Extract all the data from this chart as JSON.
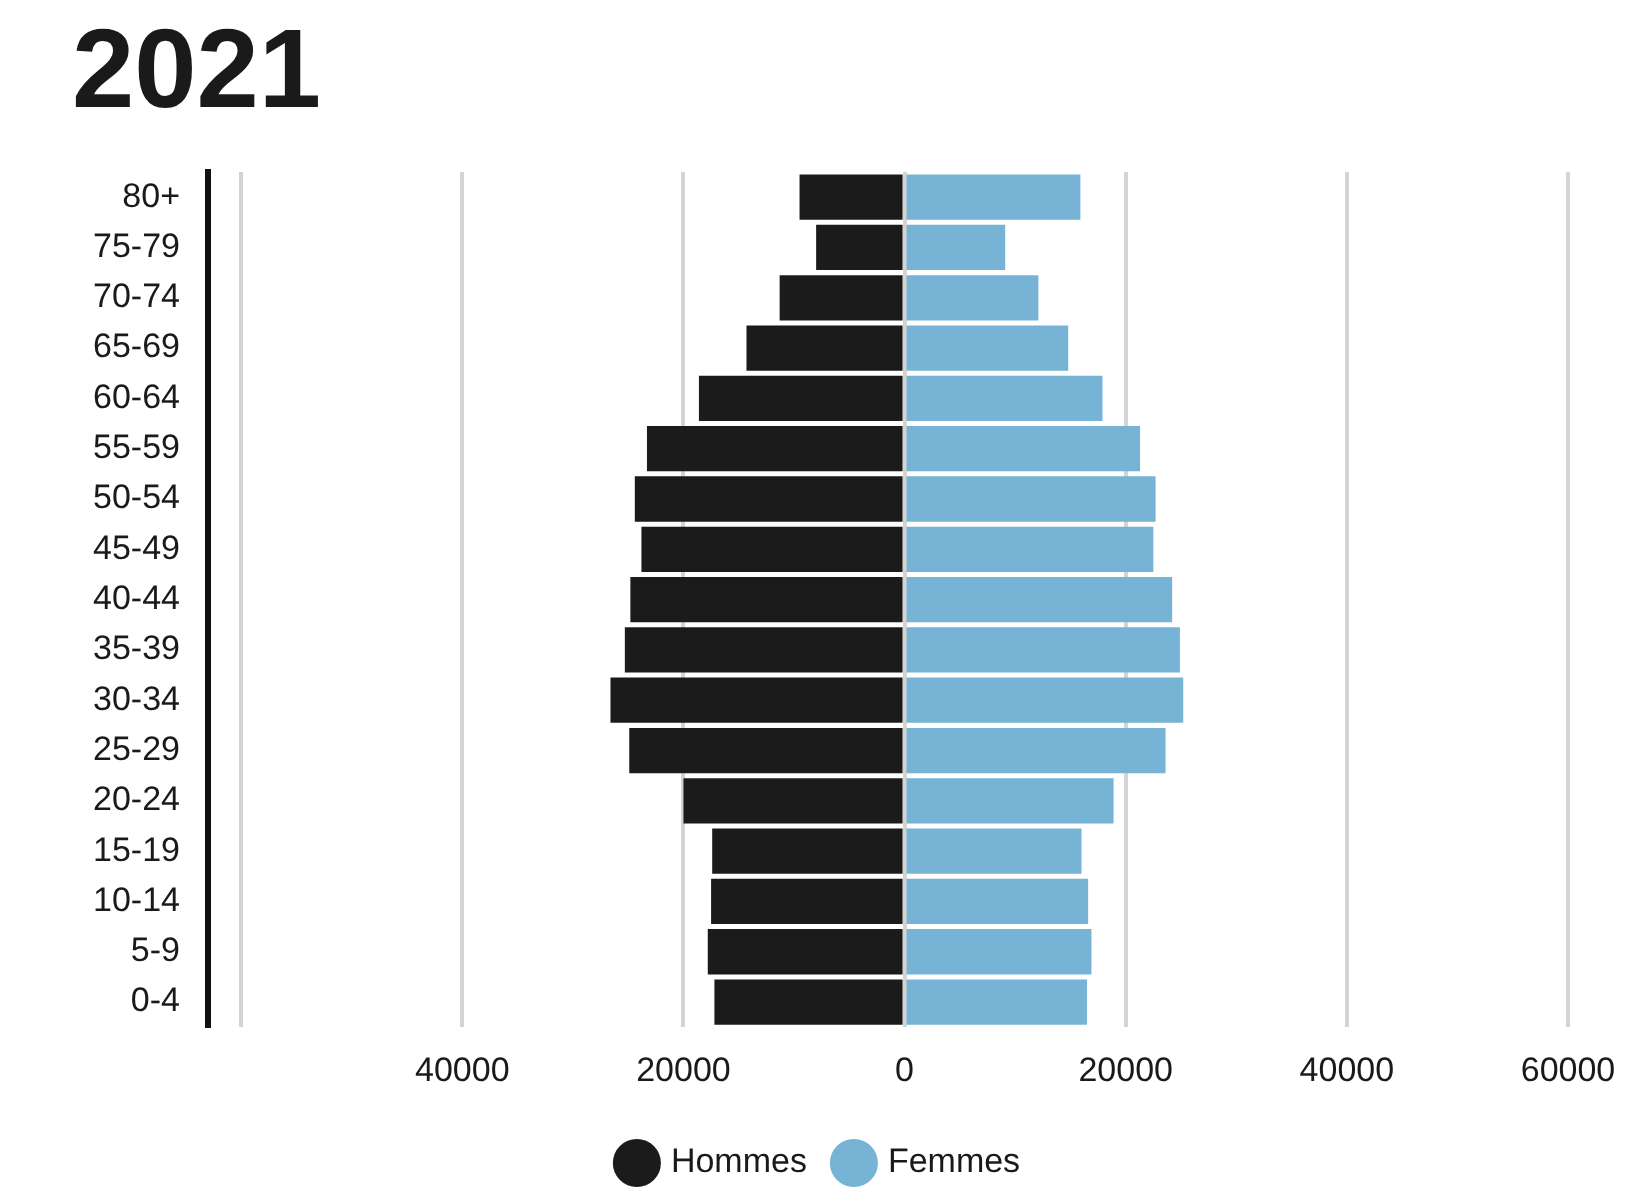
{
  "chart_data": {
    "type": "bar",
    "title": "2021",
    "orientation": "horizontal",
    "stacked": true,
    "categories": [
      "80+",
      "75-79",
      "70-74",
      "65-69",
      "60-64",
      "55-59",
      "50-54",
      "45-49",
      "40-44",
      "35-39",
      "30-34",
      "25-29",
      "20-24",
      "15-19",
      "10-14",
      "5-9",
      "0-4"
    ],
    "series": [
      {
        "name": "Hommes",
        "color": "#1b1b1b",
        "values": [
          -9500,
          -8000,
          -11300,
          -14300,
          -18600,
          -23300,
          -24400,
          -23800,
          -24800,
          -25300,
          -26600,
          -24900,
          -20000,
          -17400,
          -17500,
          -17800,
          -17200
        ]
      },
      {
        "name": "Femmes",
        "color": "#76b3d5",
        "values": [
          15900,
          9100,
          12100,
          14800,
          17900,
          21300,
          22700,
          22500,
          24200,
          24900,
          25200,
          23600,
          18900,
          16000,
          16600,
          16900,
          16500
        ]
      }
    ],
    "xlim": [
      -63000,
      60000
    ],
    "xticks": [
      {
        "value": -60000,
        "label": null
      },
      {
        "value": -40000,
        "label": "40000"
      },
      {
        "value": -20000,
        "label": "20000"
      },
      0,
      20000,
      40000,
      60000
    ],
    "grid": "x",
    "legend": "bottom"
  }
}
